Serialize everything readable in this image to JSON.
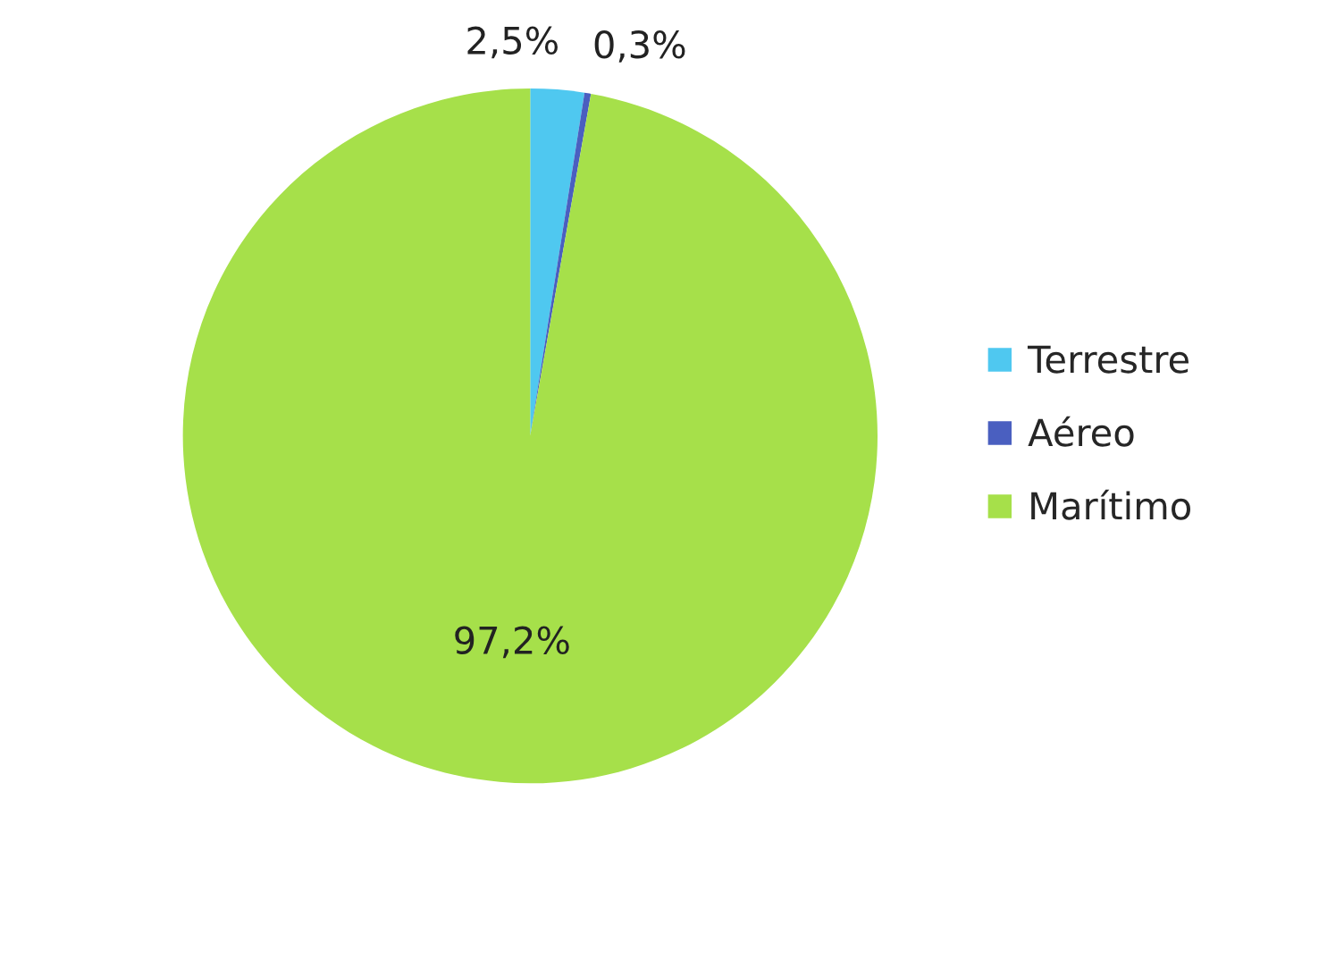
{
  "chart_data": {
    "type": "pie",
    "categories": [
      "Terrestre",
      "Aéreo",
      "Marítimo"
    ],
    "values": [
      2.5,
      0.3,
      97.2
    ],
    "colors": [
      "#4fc8f0",
      "#4a5fc0",
      "#a6e04a"
    ],
    "value_labels": [
      "2,5%",
      "0,3%",
      "97,2%"
    ],
    "legend": "right"
  }
}
